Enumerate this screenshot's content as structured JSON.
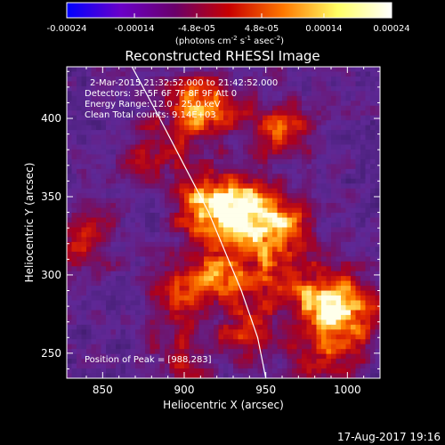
{
  "colorbar": {
    "ticks": [
      "-0.00024",
      "-0.00014",
      "-4.8e-05",
      "4.8e-05",
      "0.00014",
      "0.00024"
    ],
    "tick_values": [
      -0.00024,
      -0.00014,
      -4.8e-05,
      4.8e-05,
      0.00014,
      0.00024
    ],
    "range": [
      -0.00024,
      0.00024
    ],
    "unit_parts": [
      "(photons cm",
      "-2",
      " s",
      "-1",
      " asec",
      "-2",
      ")"
    ],
    "colors": [
      "#0000ff",
      "#6a00c8",
      "#6a006a",
      "#c80000",
      "#ff7800",
      "#ffff64",
      "#ffffff"
    ]
  },
  "chart_data": {
    "type": "heatmap",
    "title": "Reconstructed RHESSI Image",
    "xlabel": "Heliocentric X (arcsec)",
    "ylabel": "Heliocentric Y (arcsec)",
    "xlim": [
      828,
      1020
    ],
    "ylim": [
      234,
      433
    ],
    "xticks": [
      850,
      900,
      950,
      1000
    ],
    "yticks": [
      250,
      300,
      350,
      400
    ],
    "info_lines": [
      "2-Mar-2015 21:32:52.000 to 21:42:52.000",
      "Detectors: 3F 5F 6F 7F 8F 9F Att 0",
      "Energy Range: 12.0 - 25.0 keV",
      "Clean    Total counts: 9.14E+03"
    ],
    "peak_label": "Position of Peak = [988,283]",
    "peak": [
      988,
      283
    ],
    "limb_curve": [
      [
        868,
        433
      ],
      [
        885,
        400
      ],
      [
        900,
        370
      ],
      [
        915,
        340
      ],
      [
        925,
        315
      ],
      [
        935,
        290
      ],
      [
        945,
        260
      ],
      [
        950,
        234
      ]
    ],
    "sources": [
      {
        "x": 988,
        "y": 283,
        "amp": 1.0
      },
      {
        "x": 938,
        "y": 340,
        "amp": 0.9
      },
      {
        "x": 914,
        "y": 345,
        "amp": 0.85
      },
      {
        "x": 910,
        "y": 407,
        "amp": 0.78
      },
      {
        "x": 960,
        "y": 330,
        "amp": 0.6
      },
      {
        "x": 920,
        "y": 305,
        "amp": 0.55
      },
      {
        "x": 960,
        "y": 395,
        "amp": 0.5
      },
      {
        "x": 898,
        "y": 285,
        "amp": 0.5
      },
      {
        "x": 940,
        "y": 265,
        "amp": 0.45
      },
      {
        "x": 985,
        "y": 245,
        "amp": 0.4
      },
      {
        "x": 1005,
        "y": 270,
        "amp": 0.35
      },
      {
        "x": 835,
        "y": 325,
        "amp": 0.5
      },
      {
        "x": 880,
        "y": 380,
        "amp": 0.35
      },
      {
        "x": 950,
        "y": 300,
        "amp": 0.45
      },
      {
        "x": 900,
        "y": 245,
        "amp": 0.3
      }
    ]
  },
  "footer": {
    "timestamp": "17-Aug-2017 19:16"
  }
}
